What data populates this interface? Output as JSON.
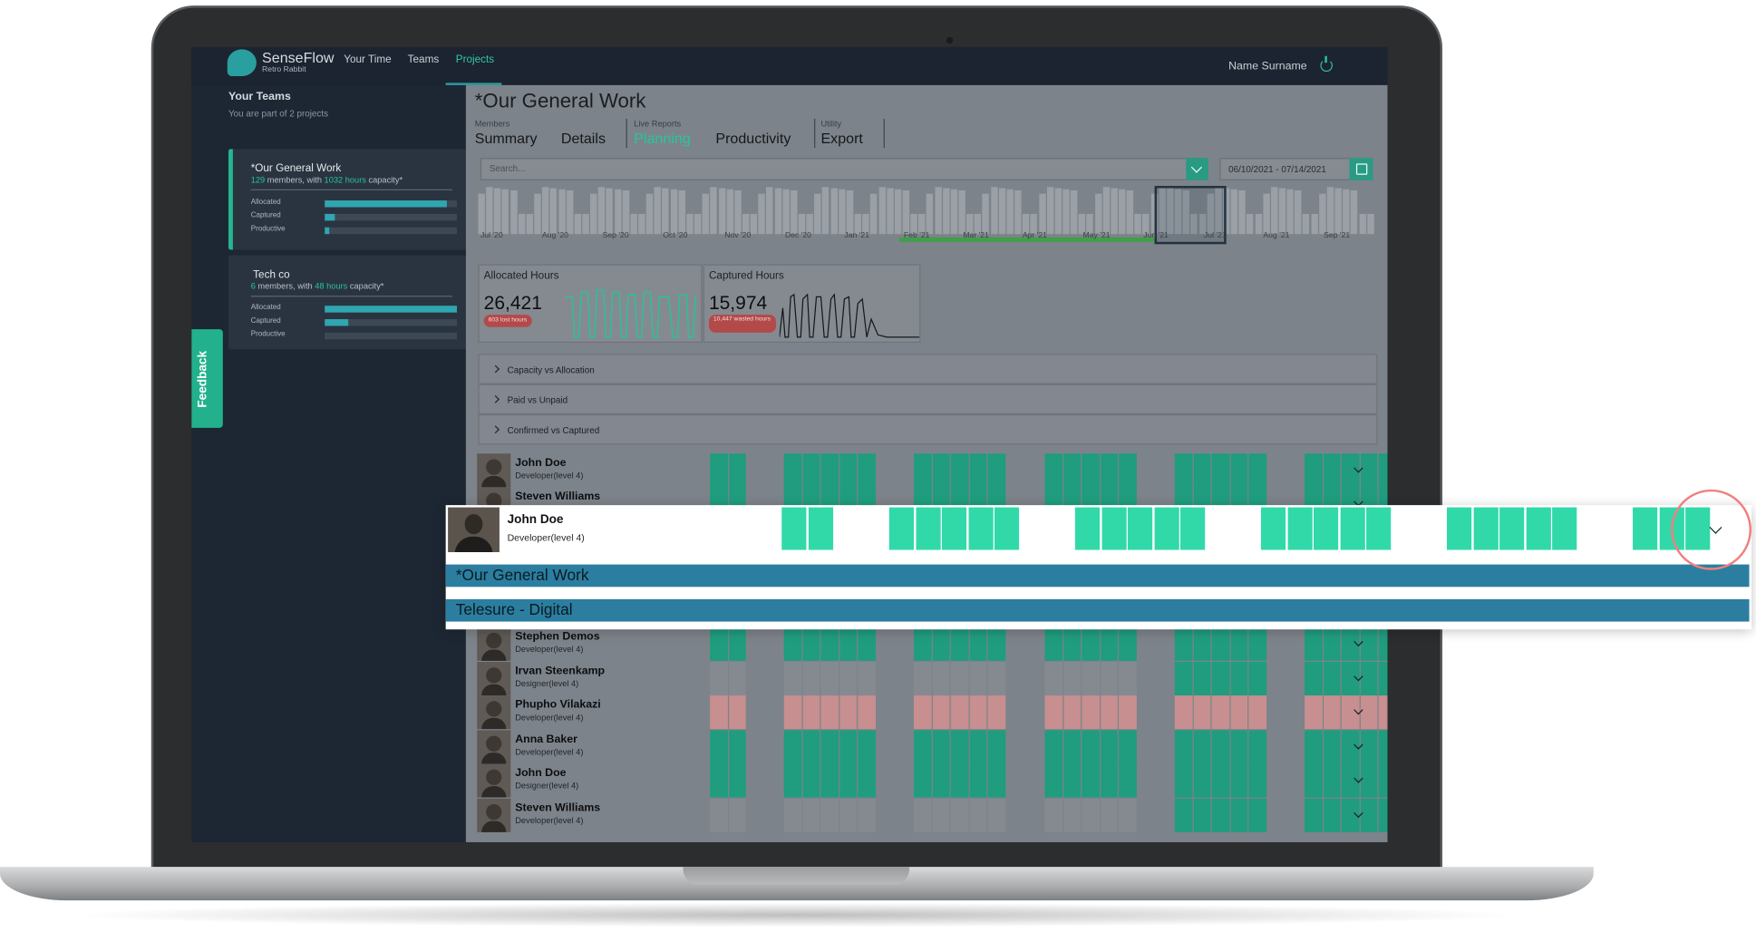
{
  "app": {
    "brand_name": "SenseFlow",
    "brand_sub": "Retro Rabbit",
    "nav": [
      "Your Time",
      "Teams",
      "Projects"
    ],
    "active_nav": "Projects",
    "user_name": "Name Surname",
    "accent_color": "#25b591"
  },
  "sidebar": {
    "heading": "Your Teams",
    "subheading": "You are part of 2 projects",
    "teams": [
      {
        "name": "*Our General Work",
        "members_count": "129",
        "members_text": " members, with ",
        "hours": "1032 hours",
        "capacity_text": " capacity*",
        "metrics": [
          {
            "label": "Allocated",
            "fraction": 0.92
          },
          {
            "label": "Captured",
            "fraction": 0.08
          },
          {
            "label": "Productive",
            "fraction": 0.03
          }
        ]
      },
      {
        "name": "Tech co",
        "members_count": "6",
        "members_text": " members, with ",
        "hours": "48 hours",
        "capacity_text": " capacity*",
        "metrics": [
          {
            "label": "Allocated",
            "fraction": 1.0
          },
          {
            "label": "Captured",
            "fraction": 0.18
          },
          {
            "label": "Productive",
            "fraction": 0.0
          }
        ]
      }
    ],
    "feedback_label": "Feedback"
  },
  "main": {
    "title": "*Our General Work",
    "tab_groups": [
      {
        "label": "Members",
        "tabs": [
          "Summary",
          "Details"
        ]
      },
      {
        "label": "Live Reports",
        "tabs": [
          "Planning",
          "Productivity"
        ]
      },
      {
        "label": "Utility",
        "tabs": [
          "Export"
        ]
      }
    ],
    "active_tab": "Planning",
    "search_placeholder": "Search...",
    "date_range": "06/10/2021 - 07/14/2021",
    "timeline_labels": [
      "Jul '20",
      "Aug '20",
      "Sep '20",
      "Oct '20",
      "Nov '20",
      "Dec '20",
      "Jan '21",
      "Feb '21",
      "Mar '21",
      "Apr '21",
      "May '21",
      "Jun '21",
      "Jul '21",
      "Aug '21",
      "Sep '21"
    ],
    "cards": [
      {
        "title": "Allocated Hours",
        "value": "26,421",
        "badge": "603 lost hours"
      },
      {
        "title": "Captured Hours",
        "value": "15,974",
        "badge": "10,447 wasted hours"
      }
    ],
    "sections": [
      "Capacity vs Allocation",
      "Paid vs Unpaid",
      "Confirmed vs Captured"
    ],
    "members": [
      {
        "name": "John Doe",
        "role": "Developer(level 4)",
        "status": "green"
      },
      {
        "name": "Steven Williams",
        "role": "Developer(level 4)",
        "status": "green"
      },
      {
        "name": "Stephen Demos",
        "role": "Developer(level 4)",
        "status": "green"
      },
      {
        "name": "Irvan Steenkamp",
        "role": "Designer(level 4)",
        "status": "partial"
      },
      {
        "name": "Phupho Vilakazi",
        "role": "Developer(level 4)",
        "status": "red"
      },
      {
        "name": "Anna Baker",
        "role": "Developer(level 4)",
        "status": "green"
      },
      {
        "name": "John Doe",
        "role": "Designer(level 4)",
        "status": "green"
      },
      {
        "name": "Steven Williams",
        "role": "Developer(level 4)",
        "status": "partial"
      }
    ]
  },
  "overlay": {
    "name": "John Doe",
    "role": "Developer(level 4)",
    "projects": [
      "*Our General Work",
      "Telesure - Digital"
    ]
  }
}
